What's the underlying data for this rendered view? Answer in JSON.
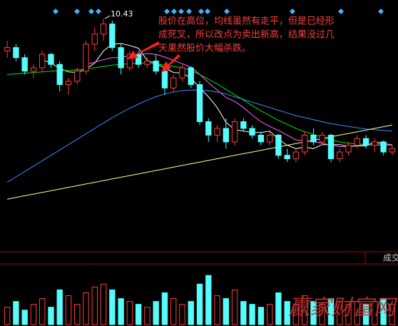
{
  "chart_data": {
    "type": "candlestick",
    "annotation": [
      "股价在高位，均线虽然有走平，但是已经形",
      "成死叉，所以改点为卖出新高，结果没过几",
      "天果然股价大幅杀跌。"
    ],
    "volume_label": "成交",
    "watermark": "赢家财富网",
    "up_color": "#ff3c3c",
    "down_color": "#54fcfc",
    "ylim": [
      7.0,
      10.6
    ],
    "volume_ylim": [
      0,
      100
    ],
    "open": [
      9.95,
      10.0,
      9.85,
      9.65,
      9.7,
      9.9,
      9.75,
      9.45,
      9.5,
      9.65,
      10.05,
      10.2,
      10.35,
      10.0,
      9.7,
      9.9,
      9.75,
      9.8,
      9.65,
      9.4,
      9.55,
      9.7,
      9.45,
      8.9,
      8.7,
      8.8,
      8.6,
      8.9,
      8.8,
      8.7,
      8.6,
      8.7,
      8.4,
      8.35,
      8.45,
      8.7,
      8.6,
      8.7,
      8.35,
      8.45,
      8.55,
      8.65,
      8.55,
      8.6,
      8.45
    ],
    "high": [
      10.1,
      10.05,
      9.9,
      9.75,
      9.95,
      9.92,
      9.8,
      9.55,
      9.7,
      10.1,
      10.3,
      10.43,
      10.4,
      10.05,
      9.95,
      9.95,
      9.85,
      9.9,
      9.7,
      9.6,
      9.75,
      9.72,
      9.5,
      8.95,
      8.85,
      8.95,
      8.95,
      8.95,
      8.85,
      8.75,
      8.75,
      8.72,
      8.5,
      8.5,
      8.75,
      8.8,
      8.75,
      8.72,
      8.5,
      8.6,
      8.7,
      8.7,
      8.65,
      8.62,
      8.55
    ],
    "low": [
      9.85,
      9.8,
      9.6,
      9.55,
      9.65,
      9.7,
      9.35,
      9.3,
      9.45,
      9.6,
      9.95,
      10.1,
      9.95,
      9.6,
      9.65,
      9.7,
      9.7,
      9.6,
      9.3,
      9.35,
      9.5,
      9.4,
      8.85,
      8.6,
      8.6,
      8.5,
      8.55,
      8.75,
      8.65,
      8.55,
      8.55,
      8.35,
      8.3,
      8.3,
      8.4,
      8.55,
      8.55,
      8.3,
      8.3,
      8.4,
      8.5,
      8.5,
      8.45,
      8.4,
      8.4
    ],
    "close": [
      10.0,
      9.85,
      9.65,
      9.7,
      9.9,
      9.75,
      9.45,
      9.5,
      9.65,
      10.05,
      10.2,
      10.35,
      10.0,
      9.7,
      9.9,
      9.75,
      9.8,
      9.65,
      9.4,
      9.55,
      9.7,
      9.45,
      8.9,
      8.7,
      8.8,
      8.6,
      8.9,
      8.8,
      8.7,
      8.6,
      8.7,
      8.4,
      8.35,
      8.45,
      8.7,
      8.6,
      8.7,
      8.35,
      8.45,
      8.55,
      8.65,
      8.55,
      8.6,
      8.45,
      8.5
    ],
    "volume": [
      30,
      40,
      25,
      35,
      45,
      30,
      60,
      50,
      35,
      55,
      65,
      70,
      60,
      45,
      40,
      35,
      30,
      40,
      55,
      45,
      35,
      40,
      70,
      85,
      50,
      45,
      60,
      40,
      35,
      30,
      35,
      55,
      40,
      35,
      50,
      40,
      35,
      45,
      40,
      35,
      40,
      35,
      40,
      45,
      35
    ],
    "series": [
      {
        "color": "#ffffff",
        "values": [
          null,
          null,
          null,
          null,
          9.82,
          9.77,
          9.69,
          9.64,
          9.63,
          9.68,
          9.77,
          9.95,
          10.05,
          10.06,
          10.03,
          9.99,
          9.81,
          9.76,
          9.7,
          9.63,
          9.62,
          9.55,
          9.4,
          9.27,
          9.11,
          8.89,
          8.78,
          8.76,
          8.74,
          8.74,
          8.76,
          8.64,
          8.55,
          8.5,
          8.52,
          8.5,
          8.56,
          8.56,
          8.56,
          8.53,
          8.54,
          8.54,
          8.6,
          8.58,
          8.55
        ]
      },
      {
        "color": "#ff64ff",
        "values": [
          null,
          null,
          null,
          null,
          null,
          null,
          null,
          null,
          null,
          9.75,
          9.78,
          9.82,
          9.85,
          9.85,
          9.88,
          9.9,
          9.91,
          9.9,
          9.86,
          9.81,
          9.76,
          9.71,
          9.6,
          9.48,
          9.37,
          9.26,
          9.2,
          9.11,
          9.0,
          8.9,
          8.83,
          8.77,
          8.7,
          8.63,
          8.62,
          8.6,
          8.58,
          8.55,
          8.53,
          8.53,
          8.55,
          8.56,
          8.57,
          8.57,
          8.56
        ]
      },
      {
        "color": "#00e600",
        "values": [
          9.6,
          9.61,
          9.62,
          9.63,
          9.64,
          9.65,
          9.66,
          9.66,
          9.67,
          9.68,
          9.7,
          9.72,
          9.74,
          9.75,
          9.76,
          9.77,
          9.77,
          9.76,
          9.74,
          9.72,
          9.7,
          9.66,
          9.6,
          9.53,
          9.46,
          9.38,
          9.3,
          9.22,
          9.14,
          9.06,
          8.99,
          8.92,
          8.86,
          8.8,
          8.75,
          8.71,
          8.67,
          8.63,
          8.6,
          8.58,
          8.57,
          8.56,
          8.55,
          8.55,
          8.55
        ]
      },
      {
        "color": "#3c8cff",
        "values": [
          8.0,
          8.08,
          8.16,
          8.24,
          8.32,
          8.4,
          8.48,
          8.56,
          8.64,
          8.72,
          8.8,
          8.88,
          8.96,
          9.03,
          9.1,
          9.16,
          9.22,
          9.27,
          9.31,
          9.34,
          9.36,
          9.37,
          9.37,
          9.36,
          9.34,
          9.31,
          9.27,
          9.23,
          9.19,
          9.15,
          9.11,
          9.07,
          9.03,
          8.99,
          8.96,
          8.93,
          8.9,
          8.87,
          8.85,
          8.83,
          8.81,
          8.79,
          8.78,
          8.77,
          8.76
        ]
      },
      {
        "color": "#ffff96",
        "values": [
          7.75,
          7.775,
          7.8,
          7.825,
          7.85,
          7.875,
          7.9,
          7.925,
          7.95,
          7.975,
          8.0,
          8.025,
          8.05,
          8.075,
          8.1,
          8.125,
          8.15,
          8.175,
          8.2,
          8.225,
          8.25,
          8.275,
          8.3,
          8.325,
          8.35,
          8.375,
          8.4,
          8.425,
          8.45,
          8.475,
          8.5,
          8.525,
          8.55,
          8.575,
          8.6,
          8.625,
          8.65,
          8.675,
          8.7,
          8.725,
          8.75,
          8.775,
          8.8,
          8.825,
          8.85
        ]
      }
    ]
  }
}
